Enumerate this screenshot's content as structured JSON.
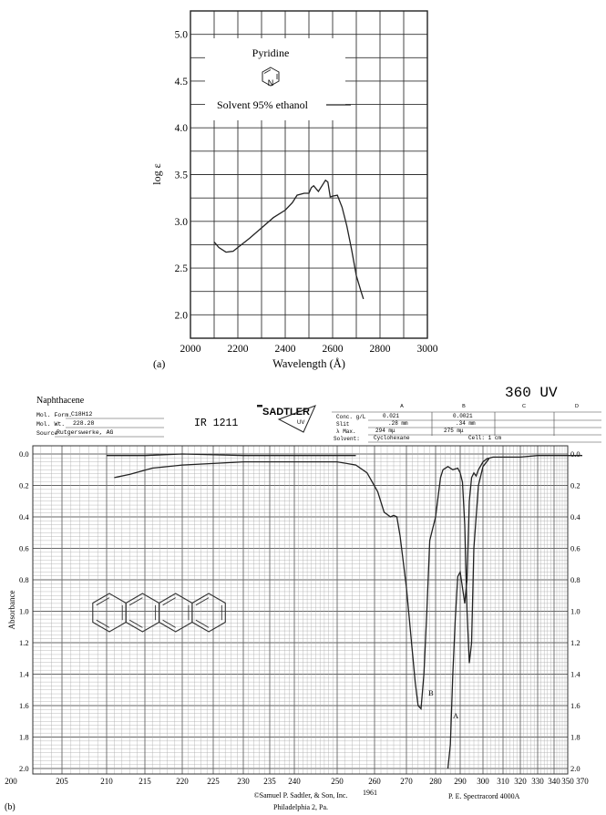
{
  "charts": {
    "a": {
      "panel_label": "(a)",
      "compound": "Pyridine",
      "ring_atom": "N",
      "legend_text": "Solvent 95% ethanol",
      "ylabel": "log ε",
      "xlabel": "Wavelength (Å)",
      "xticks": [
        "2000",
        "2200",
        "2400",
        "2600",
        "2800",
        "3000"
      ],
      "yticks": [
        "2.0",
        "2.5",
        "3.0",
        "3.5",
        "4.0",
        "4.5",
        "5.0"
      ]
    },
    "b": {
      "panel_label": "(b)",
      "compound": "Naphthacene",
      "title_number": "360 UV",
      "ir_code": "IR 1211",
      "brand": "SADTLER",
      "brand_sub": "UV",
      "mol_form_label": "Mol. Form.",
      "mol_form_value": "C18H12",
      "mol_wt_label": "Mol. Wt.",
      "mol_wt_value": "228.28",
      "source_label": "Source",
      "source_value": "Rutgerswerke, AG",
      "col_headers": [
        "A",
        "B",
        "C",
        "D"
      ],
      "conc_label": "Conc. g/L",
      "conc_a": "0.021",
      "conc_b": "0.0021",
      "slit_label": "Slit",
      "slit_a": ".28 mm",
      "slit_b": ".34 mm",
      "lmax_label": "λ Max.",
      "lmax_a": "294 mμ",
      "lmax_b": "275 mμ",
      "solvent_label": "Solvent:",
      "solvent_value": "Cyclohexane",
      "cell_label": "Cell: 1 cm",
      "ylabel": "Absorbance",
      "xticks": [
        "200",
        "205",
        "210",
        "215",
        "220",
        "225",
        "230",
        "235",
        "240",
        "250",
        "260",
        "270",
        "280",
        "290",
        "300",
        "310",
        "320",
        "330",
        "340",
        "350",
        "370"
      ],
      "yticks": [
        "0.0",
        "0.2",
        "0.4",
        "0.6",
        "0.8",
        "1.0",
        "1.2",
        "1.4",
        "1.6",
        "1.8",
        "2.0"
      ],
      "peak_b_label": "B",
      "peak_a_label": "A",
      "footer_copyright": "©Samuel P. Sadtler, & Son, Inc.",
      "footer_city": "Philadelphia 2, Pa.",
      "footer_year": "1961",
      "footer_instrument": "P. E. Spectracord 4000A"
    }
  },
  "chart_data": [
    {
      "type": "line",
      "title": "Pyridine",
      "xlabel": "Wavelength (Å)",
      "ylabel": "log ε",
      "xlim": [
        2000,
        3000
      ],
      "ylim": [
        1.75,
        5.25
      ],
      "grid": true,
      "legend": "top-left",
      "series": [
        {
          "name": "Solvent 95% ethanol",
          "x": [
            2100,
            2120,
            2150,
            2180,
            2200,
            2250,
            2300,
            2350,
            2400,
            2430,
            2450,
            2480,
            2500,
            2510,
            2520,
            2540,
            2560,
            2570,
            2580,
            2590,
            2600,
            2620,
            2640,
            2660,
            2680,
            2700,
            2720,
            2730
          ],
          "y": [
            2.78,
            2.72,
            2.67,
            2.68,
            2.72,
            2.82,
            2.93,
            3.04,
            3.12,
            3.2,
            3.28,
            3.3,
            3.3,
            3.36,
            3.38,
            3.32,
            3.4,
            3.44,
            3.42,
            3.26,
            3.27,
            3.28,
            3.15,
            2.95,
            2.7,
            2.42,
            2.25,
            2.17
          ]
        }
      ]
    },
    {
      "type": "line",
      "title": "Naphthacene",
      "xlabel": "",
      "ylabel": "Absorbance",
      "xlim": [
        200,
        370
      ],
      "ylim": [
        2.0,
        0.0
      ],
      "grid": true,
      "series": [
        {
          "x": [
            211,
            213,
            216,
            220,
            225,
            230,
            240,
            250,
            255,
            258,
            261,
            263,
            265,
            266,
            267,
            268,
            270,
            272,
            273,
            274,
            275,
            276,
            277,
            278,
            280,
            282,
            283,
            285,
            287,
            289,
            290,
            291,
            292,
            293,
            294,
            295,
            296,
            298,
            300,
            303
          ],
          "y": [
            0.15,
            0.13,
            0.09,
            0.07,
            0.06,
            0.05,
            0.05,
            0.05,
            0.07,
            0.12,
            0.24,
            0.37,
            0.4,
            0.39,
            0.4,
            0.52,
            0.85,
            1.25,
            1.45,
            1.6,
            1.62,
            1.4,
            1.0,
            0.55,
            0.4,
            0.15,
            0.1,
            0.08,
            0.1,
            0.09,
            0.12,
            0.18,
            0.45,
            1.0,
            1.33,
            1.2,
            0.6,
            0.2,
            0.08,
            0.03
          ]
        },
        {
          "x": [
            285,
            286,
            287,
            288,
            289,
            290,
            291,
            292,
            293,
            294,
            295,
            296,
            297,
            298,
            300,
            302,
            305,
            310,
            320,
            330,
            340,
            350,
            370
          ],
          "y": [
            2.0,
            1.85,
            1.4,
            1.05,
            0.78,
            0.75,
            0.85,
            0.95,
            0.8,
            0.3,
            0.15,
            0.12,
            0.14,
            0.1,
            0.05,
            0.03,
            0.02,
            0.02,
            0.02,
            0.01,
            0.01,
            0.01,
            0.01
          ]
        },
        {
          "x": [
            210,
            215,
            220,
            230,
            240,
            250,
            255
          ],
          "y": [
            0.01,
            0.01,
            0.0,
            0.01,
            0.01,
            0.01,
            0.01
          ]
        }
      ]
    }
  ]
}
